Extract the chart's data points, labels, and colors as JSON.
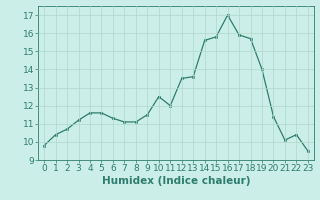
{
  "x": [
    0,
    1,
    2,
    3,
    4,
    5,
    6,
    7,
    8,
    9,
    10,
    11,
    12,
    13,
    14,
    15,
    16,
    17,
    18,
    19,
    20,
    21,
    22,
    23
  ],
  "y": [
    9.8,
    10.4,
    10.7,
    11.2,
    11.6,
    11.6,
    11.3,
    11.1,
    11.1,
    11.5,
    12.5,
    12.0,
    13.5,
    13.6,
    15.6,
    15.8,
    17.0,
    15.9,
    15.7,
    14.0,
    11.4,
    10.1,
    10.4,
    9.5
  ],
  "line_color": "#2e7d6e",
  "marker": "s",
  "marker_size": 2.0,
  "bg_color": "#cceee8",
  "grid_color": "#b0d8cc",
  "xlabel": "Humidex (Indice chaleur)",
  "ylim": [
    9,
    17.5
  ],
  "xlim": [
    -0.5,
    23.5
  ],
  "yticks": [
    9,
    10,
    11,
    12,
    13,
    14,
    15,
    16,
    17
  ],
  "xticks": [
    0,
    1,
    2,
    3,
    4,
    5,
    6,
    7,
    8,
    9,
    10,
    11,
    12,
    13,
    14,
    15,
    16,
    17,
    18,
    19,
    20,
    21,
    22,
    23
  ],
  "tick_fontsize": 6.5,
  "xlabel_fontsize": 7.5,
  "label_color": "#2e7d6e"
}
